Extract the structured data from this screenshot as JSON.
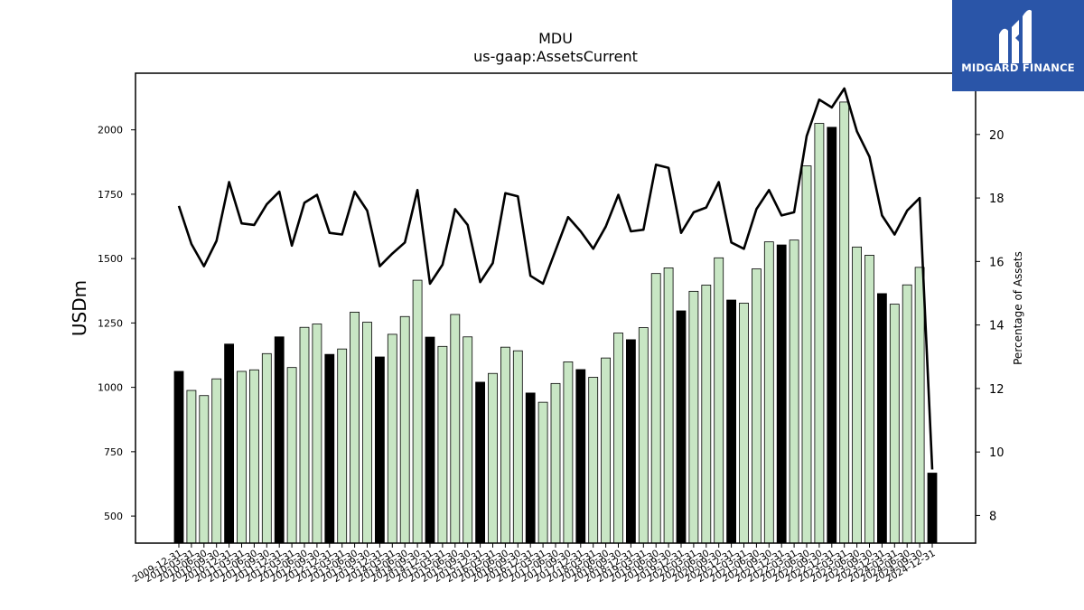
{
  "brand": {
    "logo_text": "MIDGARD FINANCE"
  },
  "chart_data": {
    "type": "bar",
    "title": "MDU",
    "subtitle": "us-gaap:AssetsCurrent",
    "ylabel": "USDm",
    "y2label": "Percentage of Assets",
    "ylim": [
      395,
      2220
    ],
    "y2lim": [
      7.13,
      21.93
    ],
    "yticks": [
      500,
      750,
      1000,
      1250,
      1500,
      1750,
      2000
    ],
    "y2ticks": [
      8,
      10,
      12,
      14,
      16,
      18,
      20
    ],
    "colors": {
      "annual": "#000000",
      "quarterly": "#c8e6c4",
      "line": "#000000"
    },
    "categories": [
      "2009-12-31",
      "2010-03-31",
      "2010-06-30",
      "2010-09-30",
      "2010-12-31",
      "2011-03-31",
      "2011-06-30",
      "2011-09-30",
      "2011-12-31",
      "2012-03-31",
      "2012-06-30",
      "2012-09-30",
      "2012-12-31",
      "2013-03-31",
      "2013-06-30",
      "2013-09-30",
      "2013-12-31",
      "2014-03-31",
      "2014-06-30",
      "2014-09-30",
      "2014-12-31",
      "2015-03-31",
      "2015-06-30",
      "2015-09-30",
      "2015-12-31",
      "2016-03-31",
      "2016-06-30",
      "2016-09-30",
      "2016-12-31",
      "2017-03-31",
      "2017-06-30",
      "2017-09-30",
      "2017-12-31",
      "2018-03-31",
      "2018-06-30",
      "2018-09-30",
      "2018-12-31",
      "2019-03-31",
      "2019-06-30",
      "2019-09-30",
      "2019-12-31",
      "2020-03-31",
      "2020-06-30",
      "2020-09-30",
      "2020-12-31",
      "2021-03-31",
      "2021-06-30",
      "2021-09-30",
      "2021-12-31",
      "2022-03-31",
      "2022-06-30",
      "2022-09-30",
      "2022-12-31",
      "2023-03-31",
      "2023-06-30",
      "2023-09-30",
      "2023-12-31",
      "2024-03-31",
      "2024-06-30",
      "2024-09-30",
      "2024-12-31"
    ],
    "series": [
      {
        "values": [
          1062,
          988,
          968,
          1033,
          1168,
          1062,
          1068,
          1131,
          1196,
          1077,
          1233,
          1246,
          1128,
          1149,
          1292,
          1253,
          1118,
          1206,
          1275,
          1416,
          1195,
          1159,
          1283,
          1196,
          1020,
          1054,
          1156,
          1142,
          978,
          942,
          1015,
          1099,
          1069,
          1039,
          1114,
          1211,
          1185,
          1232,
          1442,
          1464,
          1297,
          1373,
          1397,
          1503,
          1339,
          1327,
          1460,
          1565,
          1553,
          1572,
          1860,
          2025,
          2010,
          2108,
          1545,
          1513,
          1364,
          1323,
          1398,
          1466,
          667
        ]
      },
      {
        "type": "line",
        "values": [
          17.75,
          16.55,
          15.85,
          16.65,
          18.5,
          17.2,
          17.15,
          17.8,
          18.2,
          16.5,
          17.85,
          18.1,
          16.9,
          16.85,
          18.2,
          17.6,
          15.85,
          16.25,
          16.6,
          18.25,
          15.3,
          15.9,
          17.65,
          17.15,
          15.35,
          15.95,
          18.15,
          18.05,
          15.55,
          15.3,
          16.35,
          17.4,
          16.95,
          16.4,
          17.1,
          18.1,
          16.95,
          17.0,
          19.05,
          18.95,
          16.9,
          17.55,
          17.7,
          18.5,
          16.6,
          16.4,
          17.65,
          18.25,
          17.45,
          17.55,
          19.95,
          21.1,
          20.85,
          21.45,
          20.1,
          19.3,
          17.45,
          16.85,
          17.6,
          18.0,
          9.45
        ]
      }
    ]
  }
}
